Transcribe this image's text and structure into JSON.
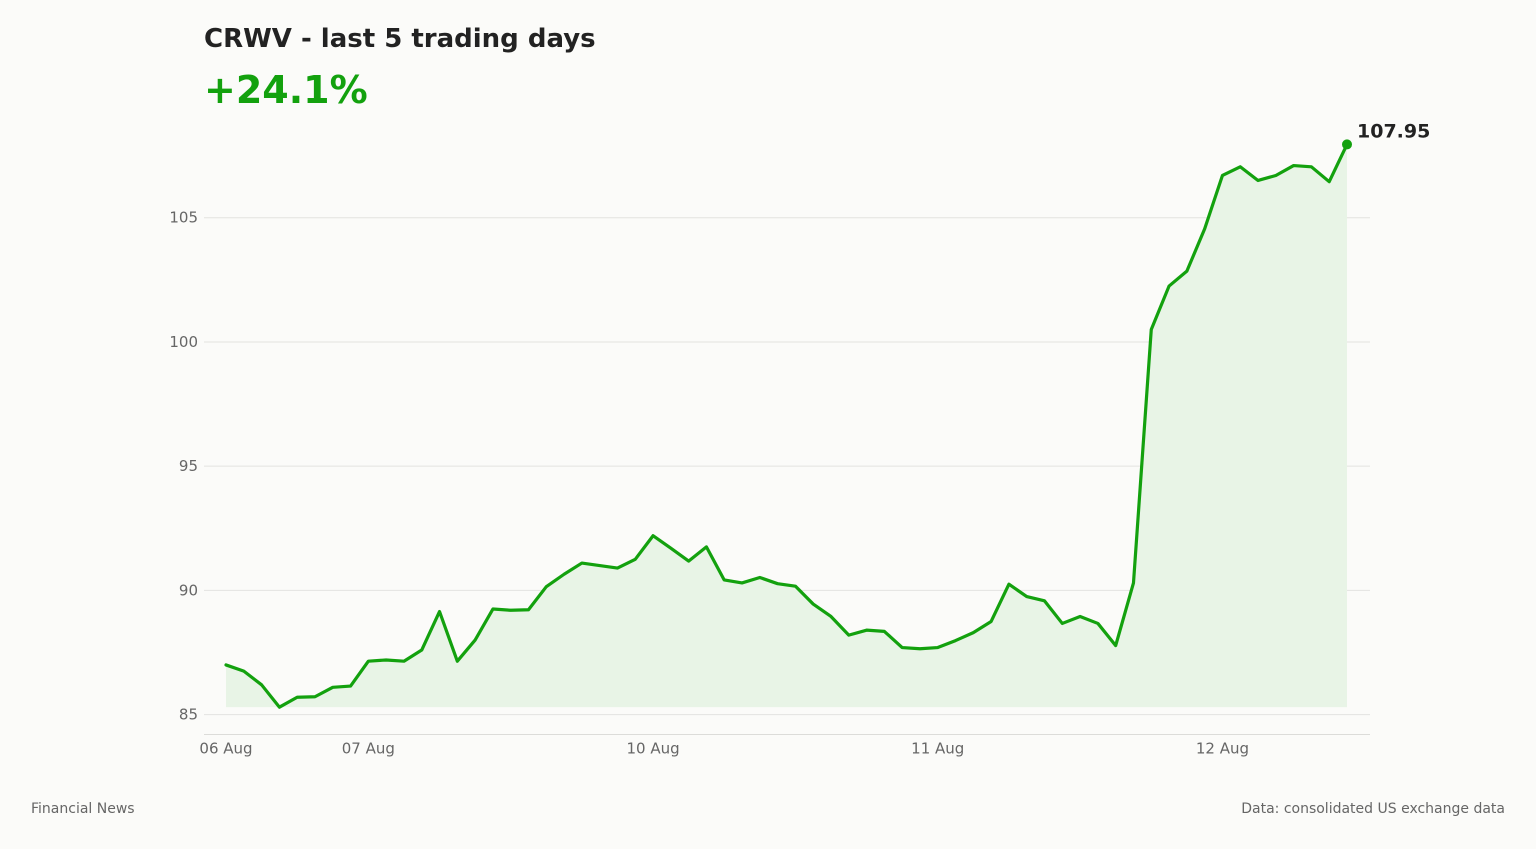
{
  "header": {
    "title": "CRWV - last 5 trading days",
    "change": "+24.1%"
  },
  "footer": {
    "source_left": "Financial News",
    "source_right": "Data: consolidated US exchange data"
  },
  "colors": {
    "line": "#13a10e",
    "fill": "#e8f4e6",
    "grid": "#e3e3e0",
    "text": "#222222",
    "muted": "#666666"
  },
  "chart_data": {
    "type": "area",
    "title": "CRWV - last 5 trading days",
    "xlabel": "",
    "ylabel": "",
    "ylim": [
      84.2,
      110.0
    ],
    "yticks": [
      85,
      90,
      95,
      100,
      105
    ],
    "xticks": [
      {
        "index": 0,
        "label": "06 Aug"
      },
      {
        "index": 8,
        "label": "07 Aug"
      },
      {
        "index": 24,
        "label": "10 Aug"
      },
      {
        "index": 40,
        "label": "11 Aug"
      },
      {
        "index": 56,
        "label": "12 Aug"
      }
    ],
    "grid": true,
    "last_label": "107.95",
    "series": [
      {
        "values": [
          87.0,
          86.75,
          86.2,
          85.3,
          85.7,
          85.72,
          86.1,
          86.15,
          87.15,
          87.2,
          87.15,
          87.6,
          89.15,
          87.15,
          88.0,
          89.25,
          89.2,
          89.22,
          90.15,
          90.65,
          91.1,
          91.0,
          90.9,
          91.25,
          92.2,
          91.7,
          91.18,
          91.75,
          90.42,
          90.3,
          90.52,
          90.27,
          90.17,
          89.45,
          88.95,
          88.2,
          88.4,
          88.35,
          87.7,
          87.65,
          87.7,
          87.98,
          88.3,
          88.75,
          90.25,
          89.75,
          89.58,
          88.67,
          88.95,
          88.67,
          87.78,
          90.3,
          100.5,
          102.25,
          102.85,
          104.55,
          106.7,
          107.05,
          106.5,
          106.7,
          107.1,
          107.05,
          106.45,
          107.95
        ]
      }
    ]
  }
}
